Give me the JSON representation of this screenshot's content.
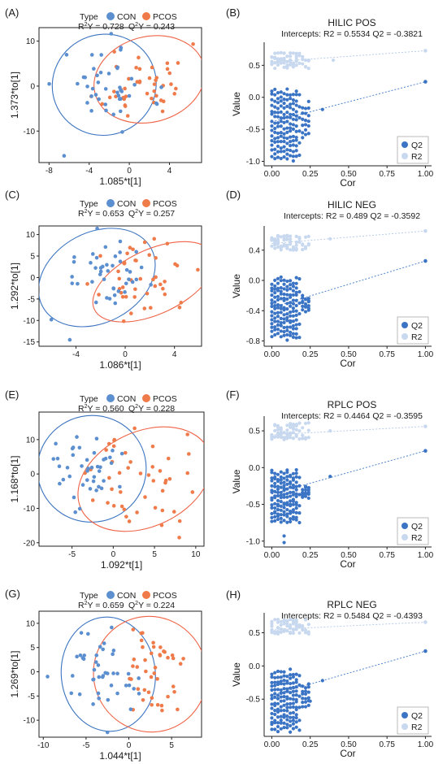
{
  "colors": {
    "con": "#5b8fcf",
    "pcos": "#ef7b4a",
    "q2": "#3b74c4",
    "r2": "#c7d8ef",
    "ellipse_con": "#3c74c0",
    "ellipse_pcos": "#ef6447",
    "line_q2": "#4f84cc",
    "line_r2": "#b7cce8"
  },
  "chart_data": [
    {
      "type": "scatter",
      "panel": "(A)",
      "legend_title": "Type",
      "legend": [
        "CON",
        "PCOS"
      ],
      "r2y_label": "R²Y = 0.728",
      "q2y_label": "Q²Y = 0.243",
      "xlabel": "1.085*t[1]",
      "ylabel": "1.373*to[1]",
      "xlim": [
        -9,
        7.2
      ],
      "ylim": [
        -17,
        13
      ],
      "xticks": [
        -8,
        -4,
        0,
        4
      ],
      "yticks": [
        10,
        0,
        -10
      ],
      "con_center": [
        -2.3,
        0.2
      ],
      "pcos_center": [
        1.5,
        0.8
      ],
      "con_ellipse": {
        "center": [
          -2.5,
          0.3
        ],
        "rx": 5.2,
        "ry": 11.2,
        "rot": -20
      },
      "pcos_ellipse": {
        "center": [
          2.0,
          1.5
        ],
        "rx": 5.6,
        "ry": 9.5,
        "rot": -15
      },
      "con_spread": [
        2.3,
        4.2
      ],
      "pcos_spread": [
        2.1,
        4.3
      ],
      "extras_con": [
        [
          -6.5,
          -15.5
        ],
        [
          -0.7,
          -10.2
        ]
      ],
      "extras_pcos": [],
      "seed": 11
    },
    {
      "type": "scatter",
      "panel": "(C)",
      "legend_title": "Type",
      "legend": [
        "CON",
        "PCOS"
      ],
      "r2y_label": "R²Y = 0.653",
      "q2y_label": "Q²Y = 0.257",
      "xlabel": "1.086*t[1]",
      "ylabel": "1.292*to[1]",
      "xlim": [
        -7,
        6.2
      ],
      "ylim": [
        -16,
        12
      ],
      "xticks": [
        -4,
        0,
        4
      ],
      "yticks": [
        10,
        5,
        0,
        -5,
        -10,
        -15
      ],
      "con_center": [
        -2.2,
        0.6
      ],
      "pcos_center": [
        1.8,
        -0.5
      ],
      "con_ellipse": {
        "center": [
          -2.3,
          0.0
        ],
        "rx": 5.0,
        "ry": 10.5,
        "rot": -28
      },
      "pcos_ellipse": {
        "center": [
          2.3,
          -1.0
        ],
        "rx": 5.3,
        "ry": 7.5,
        "rot": -25
      },
      "con_spread": [
        1.7,
        4.2
      ],
      "pcos_spread": [
        1.8,
        3.8
      ],
      "extras_con": [
        [
          -4.5,
          -14.5
        ],
        [
          -6.0,
          -9.8
        ]
      ],
      "extras_pcos": [],
      "seed": 23
    },
    {
      "type": "scatter",
      "panel": "(E)",
      "legend_title": "Type",
      "legend": [
        "CON",
        "PCOS"
      ],
      "r2y_label": "R²Y = 0.560",
      "q2y_label": "Q²Y = 0.228",
      "xlabel": "1.092*t[1]",
      "ylabel": "1.168*to[1]",
      "xlim": [
        -9,
        11
      ],
      "ylim": [
        -21,
        18
      ],
      "xticks": [
        -5,
        0,
        5,
        10
      ],
      "yticks": [
        10,
        0,
        -10,
        -20
      ],
      "con_center": [
        -2.8,
        2.0
      ],
      "pcos_center": [
        3.2,
        -2.5
      ],
      "con_ellipse": {
        "center": [
          -2.6,
          1.5
        ],
        "rx": 6.6,
        "ry": 15.5,
        "rot": -12
      },
      "pcos_ellipse": {
        "center": [
          3.8,
          -1.5
        ],
        "rx": 8.5,
        "ry": 13.8,
        "rot": -25
      },
      "con_spread": [
        2.4,
        5.5
      ],
      "pcos_spread": [
        2.8,
        6.5
      ],
      "extras_con": [],
      "extras_pcos": [
        [
          8.0,
          -18.5
        ],
        [
          9.0,
          11.5
        ]
      ],
      "seed": 37
    },
    {
      "type": "scatter",
      "panel": "(G)",
      "legend_title": "Type",
      "legend": [
        "CON",
        "PCOS"
      ],
      "r2y_label": "R²Y = 0.659",
      "q2y_label": "Q²Y = 0.224",
      "xlabel": "1.044*t[1]",
      "ylabel": "1.269*to[1]",
      "xlim": [
        -10.5,
        8.5
      ],
      "ylim": [
        -13.5,
        12.5
      ],
      "xticks": [
        -10,
        -5,
        0,
        5
      ],
      "yticks": [
        10,
        5,
        0,
        -5,
        -10
      ],
      "con_center": [
        -3.2,
        0.5
      ],
      "pcos_center": [
        2.6,
        -0.5
      ],
      "con_ellipse": {
        "center": [
          -2.4,
          -0.5
        ],
        "rx": 5.5,
        "ry": 11.8,
        "rot": -5
      },
      "pcos_ellipse": {
        "center": [
          2.5,
          -0.5
        ],
        "rx": 6.6,
        "ry": 12.0,
        "rot": -25
      },
      "con_spread": [
        2.2,
        4.0
      ],
      "pcos_spread": [
        2.0,
        5.0
      ],
      "extras_con": [
        [
          -9.5,
          -1.0
        ],
        [
          -2.5,
          -12.5
        ]
      ],
      "extras_pcos": [],
      "seed": 51
    },
    {
      "type": "scatter",
      "panel": "(B)",
      "title": "HILIC POS",
      "intercepts": "Intercepts: R2 = 0.5534    Q2 = -0.3821",
      "xlabel": "Cor",
      "ylabel": "Value",
      "legend": [
        "Q2",
        "R2"
      ],
      "xlim": [
        -0.05,
        1.04
      ],
      "ylim": [
        -1.07,
        0.86
      ],
      "xticks": [
        0,
        0.25,
        0.5,
        0.75,
        1
      ],
      "xtick_labels": [
        "0.00",
        "0.25",
        "0.50",
        "0.75",
        "1.00"
      ],
      "yticks": [
        0.5,
        0,
        -0.5,
        -1
      ],
      "ytick_labels": [
        "0.5",
        "0.0",
        "-0.5",
        "-1.0"
      ],
      "r2_line": [
        [
          0,
          0.5534
        ],
        [
          1.0,
          0.728
        ]
      ],
      "q2_line": [
        [
          0,
          -0.3821
        ],
        [
          1.0,
          0.243
        ]
      ],
      "r2_band": [
        0.45,
        0.7
      ],
      "q2_band": [
        -1.0,
        0.12
      ],
      "r2_extra": [
        [
          0.4,
          0.58
        ]
      ],
      "q2_extra": [
        [
          0.33,
          -0.19
        ]
      ],
      "seed": 71
    },
    {
      "type": "scatter",
      "panel": "(D)",
      "title": "HILIC NEG",
      "intercepts": "Intercepts: R2 = 0.489    Q2 = -0.3592",
      "xlabel": "Cor",
      "ylabel": "Value",
      "legend": [
        "Q2",
        "R2"
      ],
      "xlim": [
        -0.05,
        1.04
      ],
      "ylim": [
        -0.87,
        0.72
      ],
      "xticks": [
        0,
        0.25,
        0.5,
        0.75,
        1
      ],
      "xtick_labels": [
        "0.00",
        "0.25",
        "0.50",
        "0.75",
        "1.00"
      ],
      "yticks": [
        0.4,
        0,
        -0.4,
        -0.8
      ],
      "ytick_labels": [
        "0.4",
        "0.0",
        "-0.4",
        "-0.8"
      ],
      "r2_line": [
        [
          0,
          0.489
        ],
        [
          1.0,
          0.653
        ]
      ],
      "q2_line": [
        [
          0,
          -0.3592
        ],
        [
          1.0,
          0.257
        ]
      ],
      "r2_band": [
        0.4,
        0.6
      ],
      "q2_band": [
        -0.8,
        0.05
      ],
      "r2_extra": [
        [
          0.38,
          0.55
        ]
      ],
      "q2_extra": [],
      "seed": 83
    },
    {
      "type": "scatter",
      "panel": "(F)",
      "title": "RPLC POS",
      "intercepts": "Intercepts: R2 = 0.4464    Q2 = -0.3595",
      "xlabel": "Cor",
      "ylabel": "Value",
      "legend": [
        "Q2",
        "R2"
      ],
      "xlim": [
        -0.05,
        1.04
      ],
      "ylim": [
        -1.08,
        0.7
      ],
      "xticks": [
        0,
        0.25,
        0.5,
        0.75,
        1
      ],
      "xtick_labels": [
        "0.00",
        "0.25",
        "0.50",
        "0.75",
        "1.00"
      ],
      "yticks": [
        0.5,
        0,
        -0.5,
        -1
      ],
      "ytick_labels": [
        "0.5",
        "0.0",
        "-0.5",
        "-1.0"
      ],
      "r2_line": [
        [
          0,
          0.4464
        ],
        [
          1.0,
          0.56
        ]
      ],
      "q2_line": [
        [
          0,
          -0.3595
        ],
        [
          1.0,
          0.228
        ]
      ],
      "r2_band": [
        0.38,
        0.62
      ],
      "q2_band": [
        -0.8,
        -0.02
      ],
      "r2_extra": [
        [
          0.38,
          0.5
        ]
      ],
      "q2_extra": [
        [
          0.38,
          -0.12
        ],
        [
          0.08,
          -1.02
        ],
        [
          0.08,
          -0.93
        ]
      ],
      "seed": 97
    },
    {
      "type": "scatter",
      "panel": "(H)",
      "title": "RPLC NEG",
      "intercepts": "Intercepts: R2 = 0.5484    Q2 = -0.4393",
      "xlabel": "Cor",
      "ylabel": "Value",
      "legend": [
        "Q2",
        "R2"
      ],
      "xlim": [
        -0.05,
        1.04
      ],
      "ylim": [
        -1.06,
        0.8
      ],
      "xticks": [
        0,
        0.25,
        0.5,
        0.75,
        1
      ],
      "xtick_labels": [
        "0.00",
        "0.25",
        "0.50",
        "0.75",
        "1.00"
      ],
      "yticks": [
        0.5,
        0,
        -0.5
      ],
      "ytick_labels": [
        "0.5",
        "0.0",
        "-0.5"
      ],
      "r2_line": [
        [
          0,
          0.5484
        ],
        [
          1.0,
          0.659
        ]
      ],
      "q2_line": [
        [
          0,
          -0.4393
        ],
        [
          1.0,
          0.224
        ]
      ],
      "r2_band": [
        0.48,
        0.7
      ],
      "q2_band": [
        -1.0,
        -0.05
      ],
      "r2_extra": [],
      "q2_extra": [
        [
          0.33,
          -0.22
        ],
        [
          0.25,
          -0.53
        ]
      ],
      "seed": 113
    }
  ]
}
